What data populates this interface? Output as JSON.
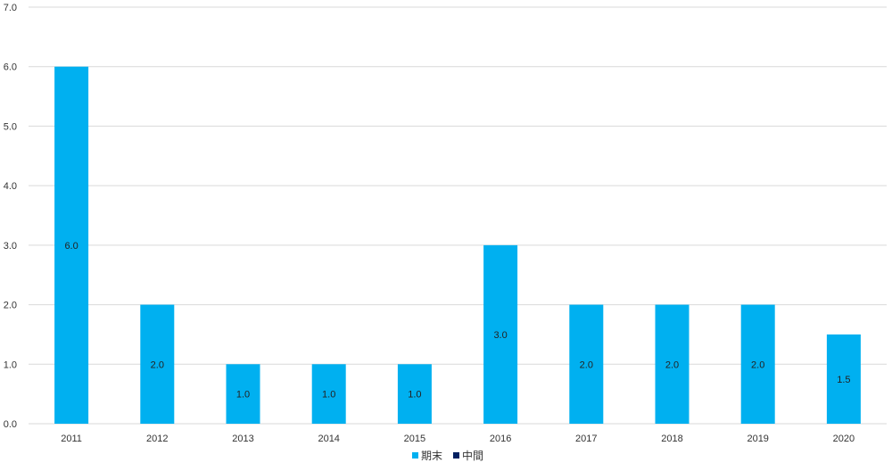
{
  "chart_data": {
    "type": "bar",
    "categories": [
      "2011",
      "2012",
      "2013",
      "2014",
      "2015",
      "2016",
      "2017",
      "2018",
      "2019",
      "2020"
    ],
    "series": [
      {
        "name": "期末",
        "values": [
          6.0,
          2.0,
          1.0,
          1.0,
          1.0,
          3.0,
          2.0,
          2.0,
          2.0,
          1.5
        ],
        "color": "#00b0f0"
      },
      {
        "name": "中間",
        "values": [
          0,
          0,
          0,
          0,
          0,
          0,
          0,
          0,
          0,
          0
        ],
        "color": "#002060"
      }
    ],
    "data_labels": [
      "6.0",
      "2.0",
      "1.0",
      "1.0",
      "1.0",
      "3.0",
      "2.0",
      "2.0",
      "2.0",
      "1.5"
    ],
    "y_ticks": [
      "0.0",
      "1.0",
      "2.0",
      "3.0",
      "4.0",
      "5.0",
      "6.0",
      "7.0"
    ],
    "ylim": [
      0,
      7
    ],
    "title": "",
    "xlabel": "",
    "ylabel": "",
    "grid": true,
    "legend_position": "bottom",
    "gridline_color": "#d9d9d9"
  }
}
